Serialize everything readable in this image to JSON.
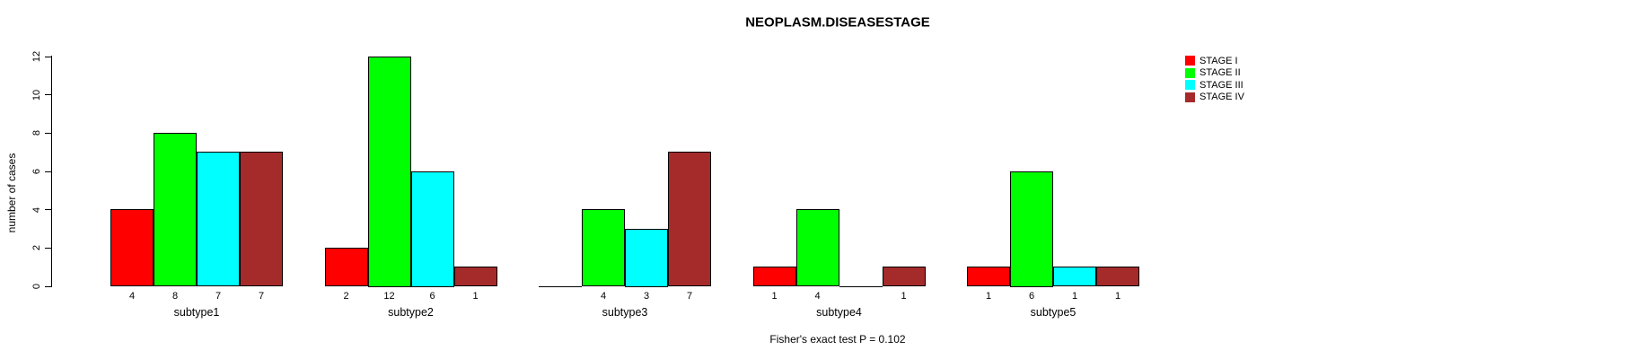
{
  "chart_data": {
    "type": "bar",
    "title": "NEOPLASM.DISEASESTAGE",
    "ylabel": "number of cases",
    "xlabel": "",
    "xlabel_note": "Fisher's exact test P = 0.102",
    "categories": [
      "subtype1",
      "subtype2",
      "subtype3",
      "subtype4",
      "subtype5"
    ],
    "series": [
      {
        "name": "STAGE I",
        "color": "#FF0000",
        "values": [
          4,
          2,
          0,
          1,
          1
        ]
      },
      {
        "name": "STAGE II",
        "color": "#00FF00",
        "values": [
          8,
          12,
          4,
          4,
          6
        ]
      },
      {
        "name": "STAGE III",
        "color": "#00FFFF",
        "values": [
          7,
          6,
          3,
          0,
          1
        ]
      },
      {
        "name": "STAGE IV",
        "color": "#A52A2A",
        "values": [
          7,
          1,
          7,
          1,
          1
        ]
      }
    ],
    "bar_value_labels_shown_only_when_nonzero": true,
    "yticks": [
      0,
      2,
      4,
      6,
      8,
      10,
      12
    ],
    "ylim": [
      0,
      12
    ],
    "grid": false,
    "legend_position": "top-right",
    "background_color": "#FFFFFF",
    "bar_border_color": "#000000"
  }
}
